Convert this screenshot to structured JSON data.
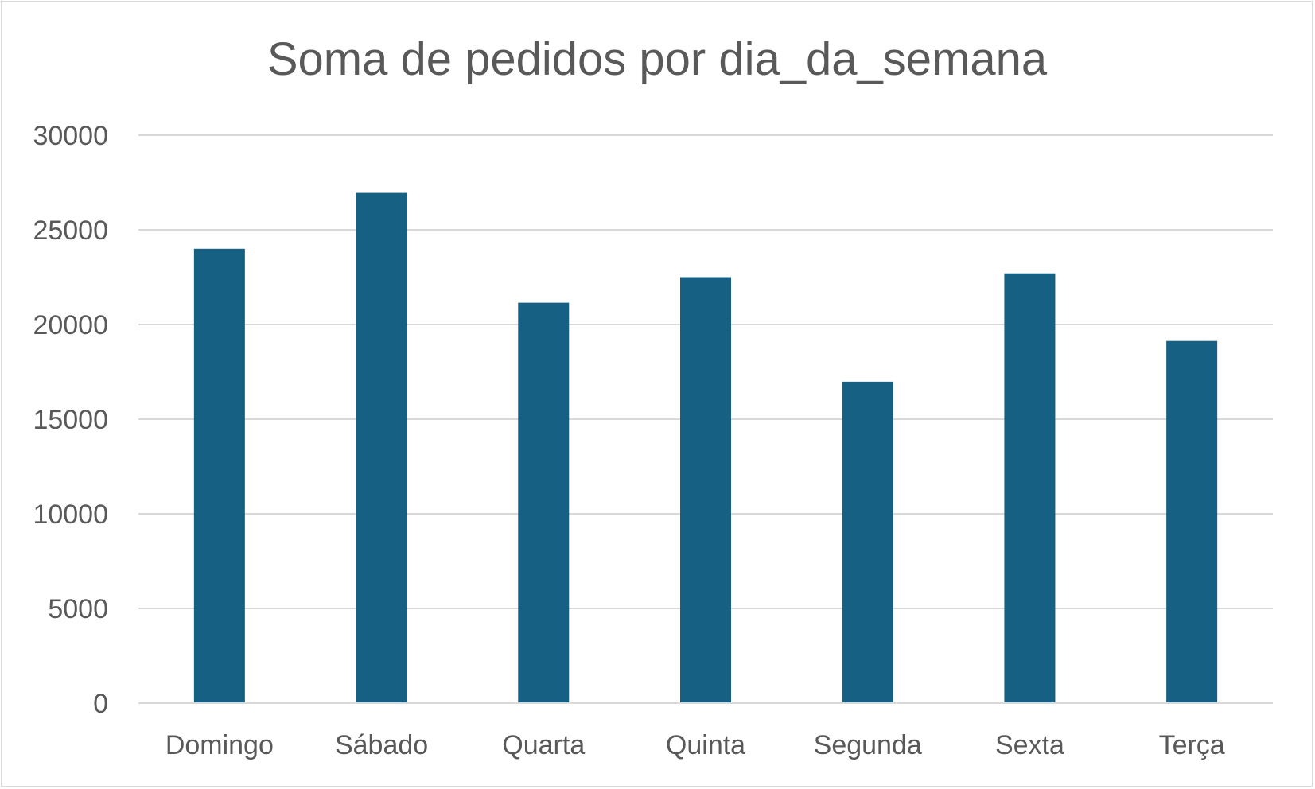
{
  "chart_data": {
    "type": "bar",
    "title": "Soma de pedidos por dia_da_semana",
    "xlabel": "",
    "ylabel": "",
    "categories": [
      "Domingo",
      "Sábado",
      "Quarta",
      "Quinta",
      "Segunda",
      "Sexta",
      "Terça"
    ],
    "values": [
      24000,
      26950,
      21150,
      22500,
      16980,
      22700,
      19130
    ],
    "ylim": [
      0,
      30000
    ],
    "yticks": [
      0,
      5000,
      10000,
      15000,
      20000,
      25000,
      30000
    ],
    "ytick_labels": [
      "0",
      "5000",
      "10000",
      "15000",
      "20000",
      "25000",
      "30000"
    ],
    "grid": true,
    "legend": "none",
    "bar_color": "#166083",
    "grid_color": "#d9d9d9",
    "text_color": "#595959"
  }
}
